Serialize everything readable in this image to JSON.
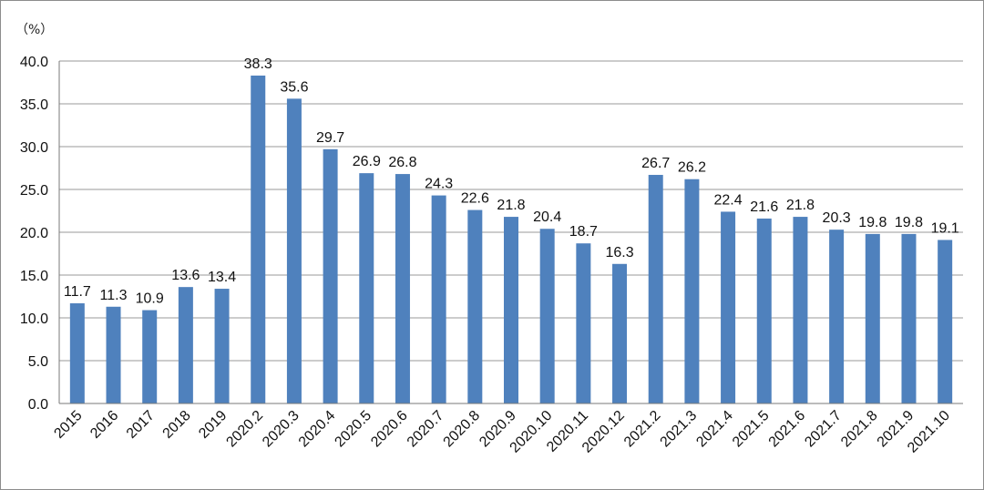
{
  "chart_data": {
    "type": "bar",
    "unit_label": "（%）",
    "categories": [
      "2015",
      "2016",
      "2017",
      "2018",
      "2019",
      "2020.2",
      "2020.3",
      "2020.4",
      "2020.5",
      "2020.6",
      "2020.7",
      "2020.8",
      "2020.9",
      "2020.10",
      "2020.11",
      "2020.12",
      "2021.2",
      "2021.3",
      "2021.4",
      "2021.5",
      "2021.6",
      "2021.7",
      "2021.8",
      "2021.9",
      "2021.10"
    ],
    "values": [
      11.7,
      11.3,
      10.9,
      13.6,
      13.4,
      38.3,
      35.6,
      29.7,
      26.9,
      26.8,
      24.3,
      22.6,
      21.8,
      20.4,
      18.7,
      16.3,
      26.7,
      26.2,
      22.4,
      21.6,
      21.8,
      20.3,
      19.8,
      19.8,
      19.1
    ],
    "data_labels": [
      "11.7",
      "11.3",
      "10.9",
      "13.6",
      "13.4",
      "38.3",
      "35.6",
      "29.7",
      "26.9",
      "26.8",
      "24.3",
      "22.6",
      "21.8",
      "20.4",
      "18.7",
      "16.3",
      "26.7",
      "26.2",
      "22.4",
      "21.6",
      "21.8",
      "20.3",
      "19.8",
      "19.8",
      "19.1"
    ],
    "yticks": [
      "0.0",
      "5.0",
      "10.0",
      "15.0",
      "20.0",
      "25.0",
      "30.0",
      "35.0",
      "40.0"
    ],
    "ylim": [
      0,
      40
    ],
    "grid": true,
    "bar_color": "#4f81bd",
    "title": "",
    "xlabel": "",
    "ylabel": ""
  }
}
